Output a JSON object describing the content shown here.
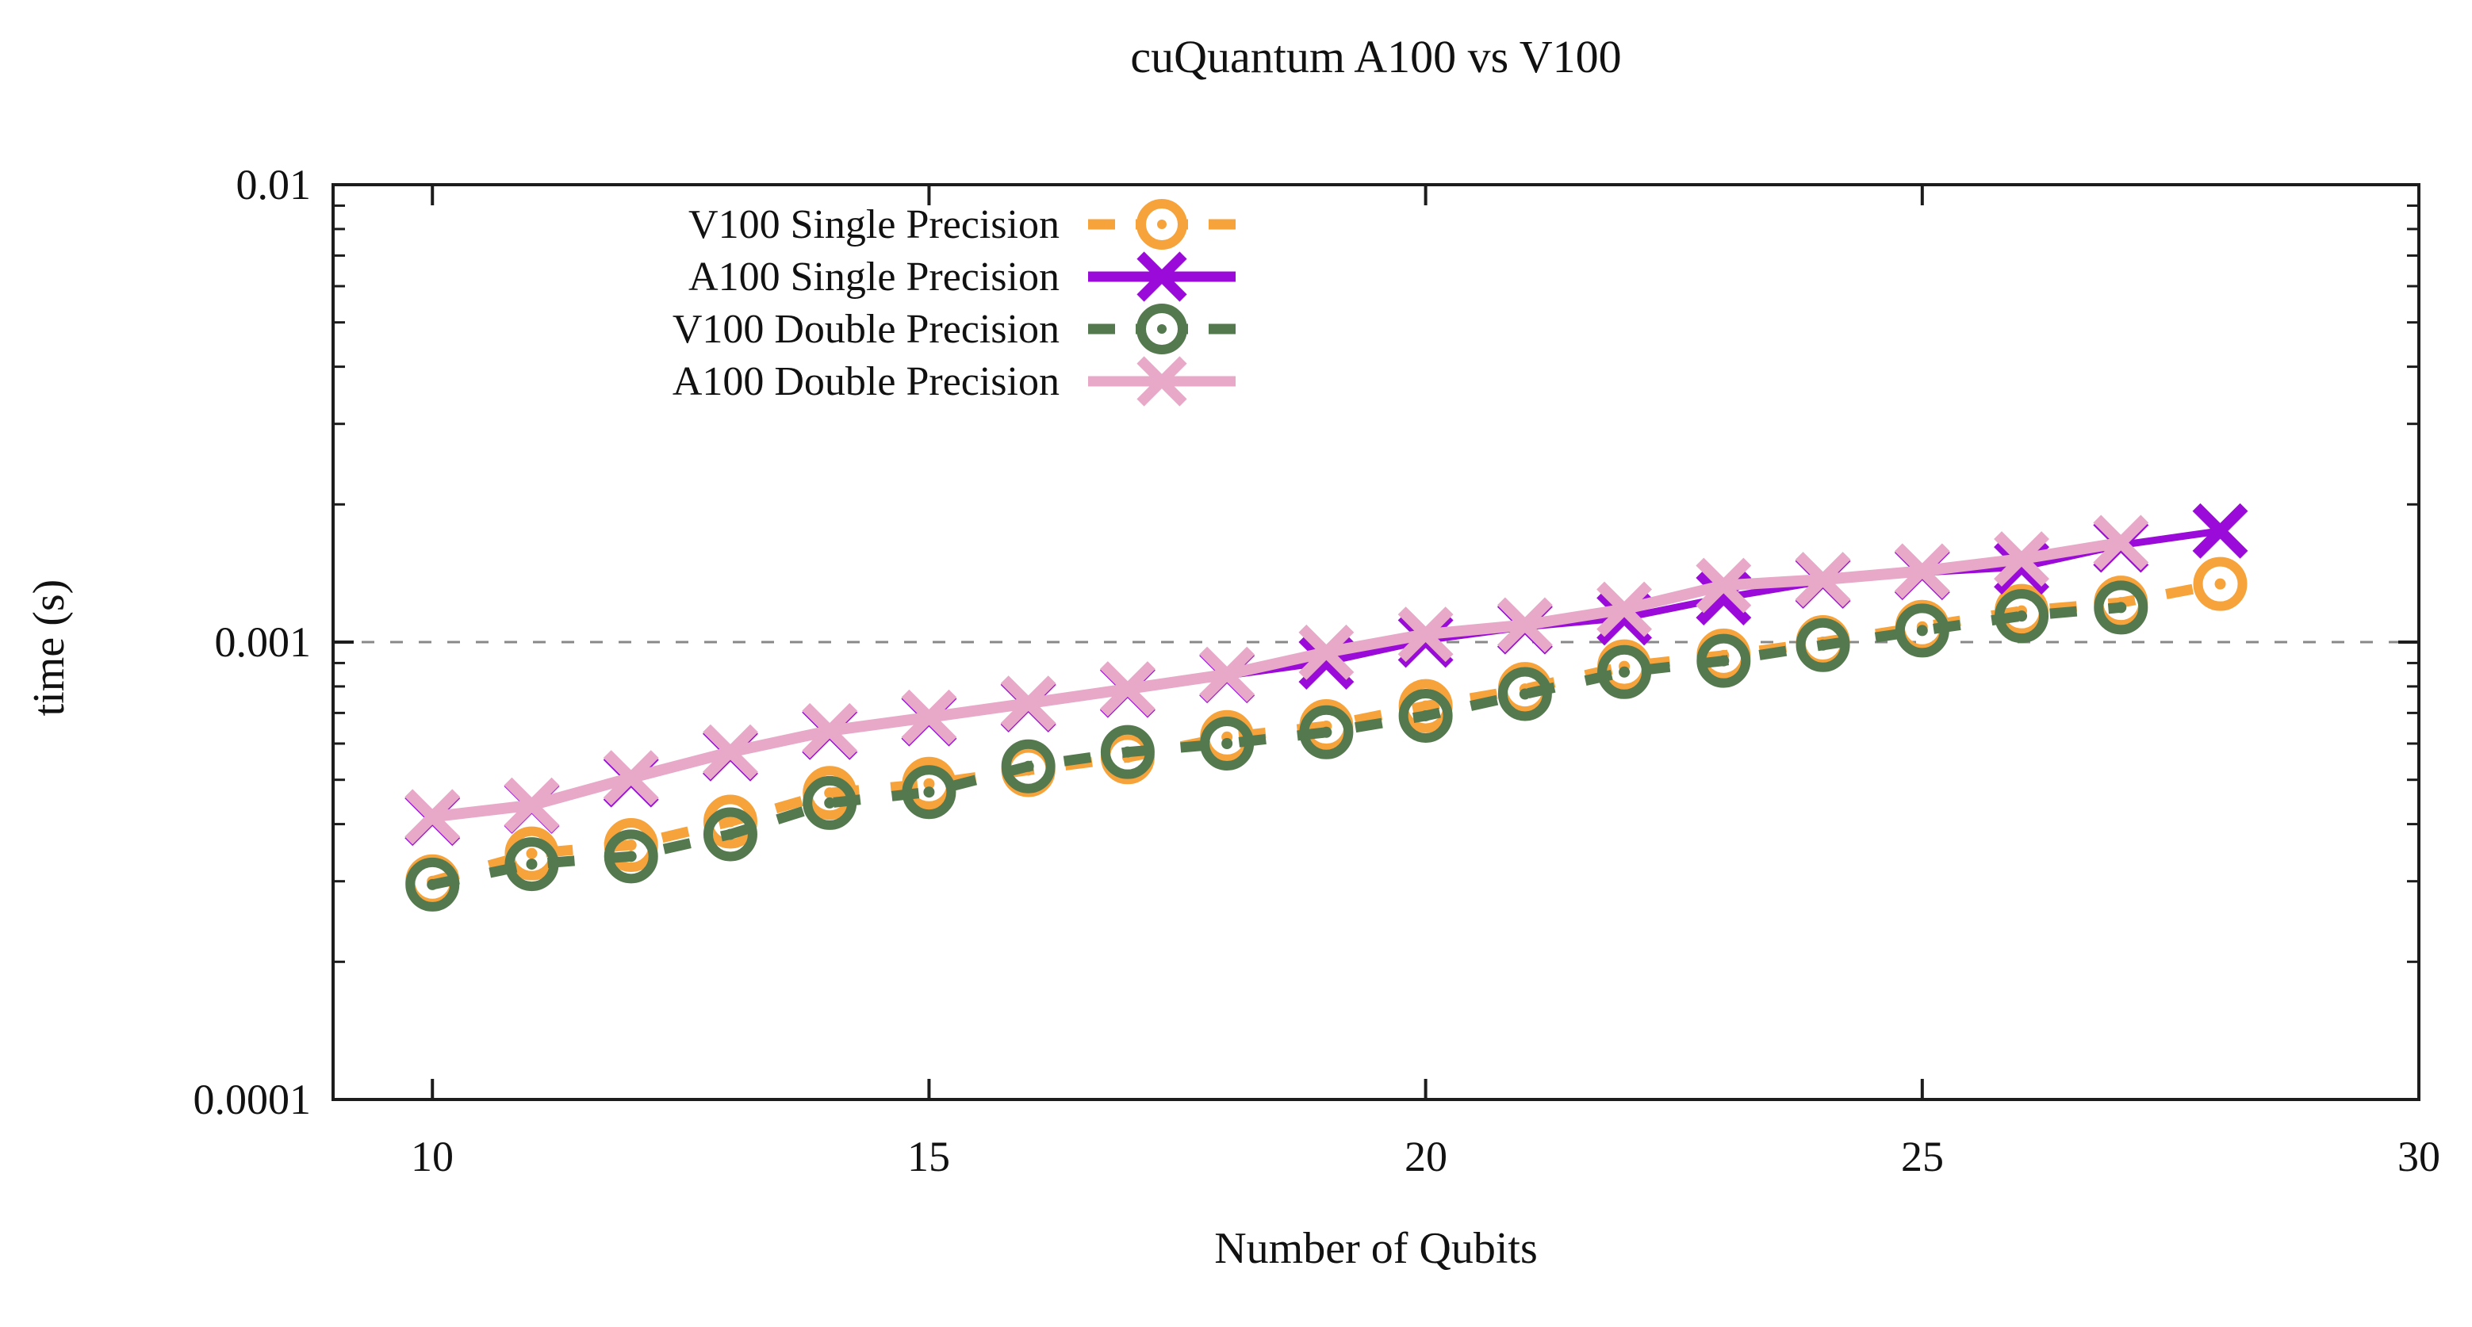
{
  "title": "cuQuantum A100 vs V100",
  "y_axis": {
    "label": "time (s)",
    "ticks": [
      "0.01",
      "0.001",
      "0.0001"
    ]
  },
  "x_axis": {
    "label": "Number of Qubits",
    "ticks": [
      "10",
      "15",
      "20",
      "25",
      "30"
    ]
  },
  "legend": {
    "entries": [
      "V100 Single Precision",
      "A100 Single Precision",
      "V100 Double Precision",
      "A100 Double Precision"
    ]
  },
  "colors": {
    "v100_single": "#F6A33C",
    "a100_single": "#9A0BD9",
    "v100_double": "#55794E",
    "a100_double": "#E8A8C8",
    "grid": "#888888",
    "axis": "#1c1c1c"
  },
  "chart_data": {
    "type": "line",
    "title": "cuQuantum A100 vs V100",
    "xlabel": "Number of Qubits",
    "ylabel": "time (s)",
    "x_range": [
      9,
      30
    ],
    "y_scale": "log",
    "y_range": [
      0.0001,
      0.01
    ],
    "x_major_ticks": [
      10,
      15,
      20,
      25,
      30
    ],
    "y_major_ticks": [
      0.0001,
      0.001,
      0.01
    ],
    "grid": "dashed horizontal line at y = 0.001 (major decades)",
    "legend_position": "top-left inside plot",
    "series": [
      {
        "name": "V100 Single Precision",
        "color": "#F6A33C",
        "line": "dashed",
        "marker": "circle-dot",
        "x": [
          10,
          11,
          12,
          13,
          14,
          15,
          16,
          17,
          18,
          19,
          20,
          21,
          22,
          23,
          24,
          25,
          26,
          27,
          28
        ],
        "y": [
          0.0003,
          0.000345,
          0.00036,
          0.000405,
          0.000468,
          0.00049,
          0.000525,
          0.00056,
          0.00062,
          0.000655,
          0.000725,
          0.00079,
          0.000885,
          0.000935,
          0.001,
          0.00108,
          0.00117,
          0.00122,
          0.00134
        ]
      },
      {
        "name": "A100 Single Precision",
        "color": "#9A0BD9",
        "line": "solid",
        "marker": "x",
        "x": [
          10,
          11,
          12,
          13,
          14,
          15,
          16,
          17,
          18,
          19,
          20,
          21,
          22,
          23,
          24,
          25,
          26,
          27,
          28
        ],
        "y": [
          0.000412,
          0.000438,
          0.0005,
          0.00057,
          0.000635,
          0.00068,
          0.00073,
          0.000785,
          0.000845,
          0.000905,
          0.00101,
          0.00108,
          0.00113,
          0.00125,
          0.00136,
          0.00142,
          0.00146,
          0.00163,
          0.00175
        ]
      },
      {
        "name": "V100 Double Precision",
        "color": "#55794E",
        "line": "dashed",
        "marker": "circle-dot",
        "x": [
          10,
          11,
          12,
          13,
          14,
          15,
          16,
          17,
          18,
          19,
          20,
          21,
          22,
          23,
          24,
          25,
          26,
          27
        ],
        "y": [
          0.000295,
          0.000327,
          0.00034,
          0.00038,
          0.000445,
          0.00047,
          0.000535,
          0.000575,
          0.0006,
          0.000635,
          0.00069,
          0.00077,
          0.00086,
          0.00091,
          0.000985,
          0.00106,
          0.00114,
          0.00119
        ]
      },
      {
        "name": "A100 Double Precision",
        "color": "#E8A8C8",
        "line": "solid",
        "marker": "x",
        "x": [
          10,
          11,
          12,
          13,
          14,
          15,
          16,
          17,
          18,
          19,
          20,
          21,
          22,
          23,
          24,
          25,
          26,
          27
        ],
        "y": [
          0.000415,
          0.00044,
          0.000505,
          0.000575,
          0.00064,
          0.000685,
          0.000735,
          0.00079,
          0.00085,
          0.00095,
          0.00104,
          0.00109,
          0.00118,
          0.00133,
          0.00137,
          0.00143,
          0.00152,
          0.00165
        ]
      }
    ]
  }
}
